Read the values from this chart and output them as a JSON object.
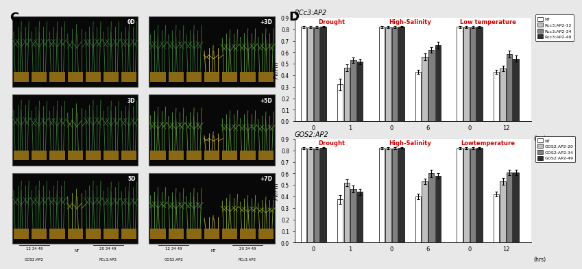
{
  "panel_C_label": "C",
  "panel_D_label": "D",
  "rcc3_title": "RCc3:AP2",
  "gos2_title": "GOS2:AP2",
  "stress_labels_rcc3": [
    "Drought",
    "High-Salinity",
    "Low temperature"
  ],
  "stress_labels_gos2": [
    "Drought",
    "High-Salinity",
    "Lowtemperature"
  ],
  "time_labels": [
    "0",
    "1",
    "0",
    "6",
    "0",
    "12"
  ],
  "hrs_label": "(hrs)",
  "ylabel": "Fv/Fm",
  "ylim": [
    0,
    0.9
  ],
  "yticks": [
    0,
    0.1,
    0.2,
    0.3,
    0.4,
    0.5,
    0.6,
    0.7,
    0.8,
    0.9
  ],
  "bar_colors": [
    "#ffffff",
    "#c0c0c0",
    "#808080",
    "#303030"
  ],
  "bar_edgecolor": "#000000",
  "rcc3_legend": [
    "NT",
    "Rcc3:AP2-12",
    "Rcc3:AP2-34",
    "Rcc3:AP2-49"
  ],
  "gos2_legend": [
    "NT",
    "GOS2:AP2-20",
    "GOS2:AP2-34",
    "GOS2:AP2-49"
  ],
  "rcc3_data": {
    "drought_t0": [
      0.82,
      0.818,
      0.818,
      0.822
    ],
    "drought_t1": [
      0.32,
      0.465,
      0.53,
      0.52
    ],
    "salinity_t0": [
      0.82,
      0.818,
      0.818,
      0.822
    ],
    "salinity_t6": [
      0.43,
      0.56,
      0.62,
      0.66
    ],
    "lowtemp_t0": [
      0.82,
      0.818,
      0.818,
      0.82
    ],
    "lowtemp_t12": [
      0.43,
      0.46,
      0.585,
      0.545
    ]
  },
  "rcc3_errors": {
    "drought_t0": [
      0.008,
      0.008,
      0.008,
      0.008
    ],
    "drought_t1": [
      0.05,
      0.03,
      0.025,
      0.025
    ],
    "salinity_t0": [
      0.008,
      0.008,
      0.008,
      0.008
    ],
    "salinity_t6": [
      0.02,
      0.03,
      0.025,
      0.03
    ],
    "lowtemp_t0": [
      0.008,
      0.008,
      0.008,
      0.008
    ],
    "lowtemp_t12": [
      0.02,
      0.025,
      0.03,
      0.025
    ]
  },
  "gos2_data": {
    "drought_t0": [
      0.82,
      0.818,
      0.818,
      0.822
    ],
    "drought_t1": [
      0.375,
      0.52,
      0.465,
      0.44
    ],
    "salinity_t0": [
      0.82,
      0.818,
      0.818,
      0.822
    ],
    "salinity_t6": [
      0.4,
      0.53,
      0.6,
      0.58
    ],
    "lowtemp_t0": [
      0.82,
      0.818,
      0.818,
      0.82
    ],
    "lowtemp_t12": [
      0.42,
      0.53,
      0.61,
      0.61
    ]
  },
  "gos2_errors": {
    "drought_t0": [
      0.008,
      0.008,
      0.008,
      0.008
    ],
    "drought_t1": [
      0.04,
      0.03,
      0.03,
      0.025
    ],
    "salinity_t0": [
      0.008,
      0.008,
      0.008,
      0.008
    ],
    "salinity_t6": [
      0.025,
      0.025,
      0.03,
      0.025
    ],
    "lowtemp_t0": [
      0.008,
      0.008,
      0.008,
      0.008
    ],
    "lowtemp_t12": [
      0.02,
      0.03,
      0.025,
      0.025
    ]
  },
  "photo_panel_bgcolor": "#0a0a0a",
  "photo_labels_left": [
    "0D",
    "3D",
    "5D"
  ],
  "photo_labels_right": [
    "+3D",
    "+5D",
    "+7D"
  ],
  "bottom_labels_left_nums": [
    "12 34 49",
    "20 34 49"
  ],
  "bottom_labels_left_names": [
    "GOS2:AP2",
    "RCc3:AP2"
  ],
  "bottom_labels_right_nums": [
    "12 34 49",
    "20 34 49"
  ],
  "bottom_labels_right_names": [
    "GOS2:AP2",
    "RCc3:AP2"
  ],
  "nt_label": "NT",
  "green_colors": [
    "#2d6a2d",
    "#3a8a3a",
    "#4aaa4a",
    "#5fbb5f",
    "#1a5a1a"
  ],
  "brown_color": "#8B6914",
  "white_color": "#e8e8e0"
}
